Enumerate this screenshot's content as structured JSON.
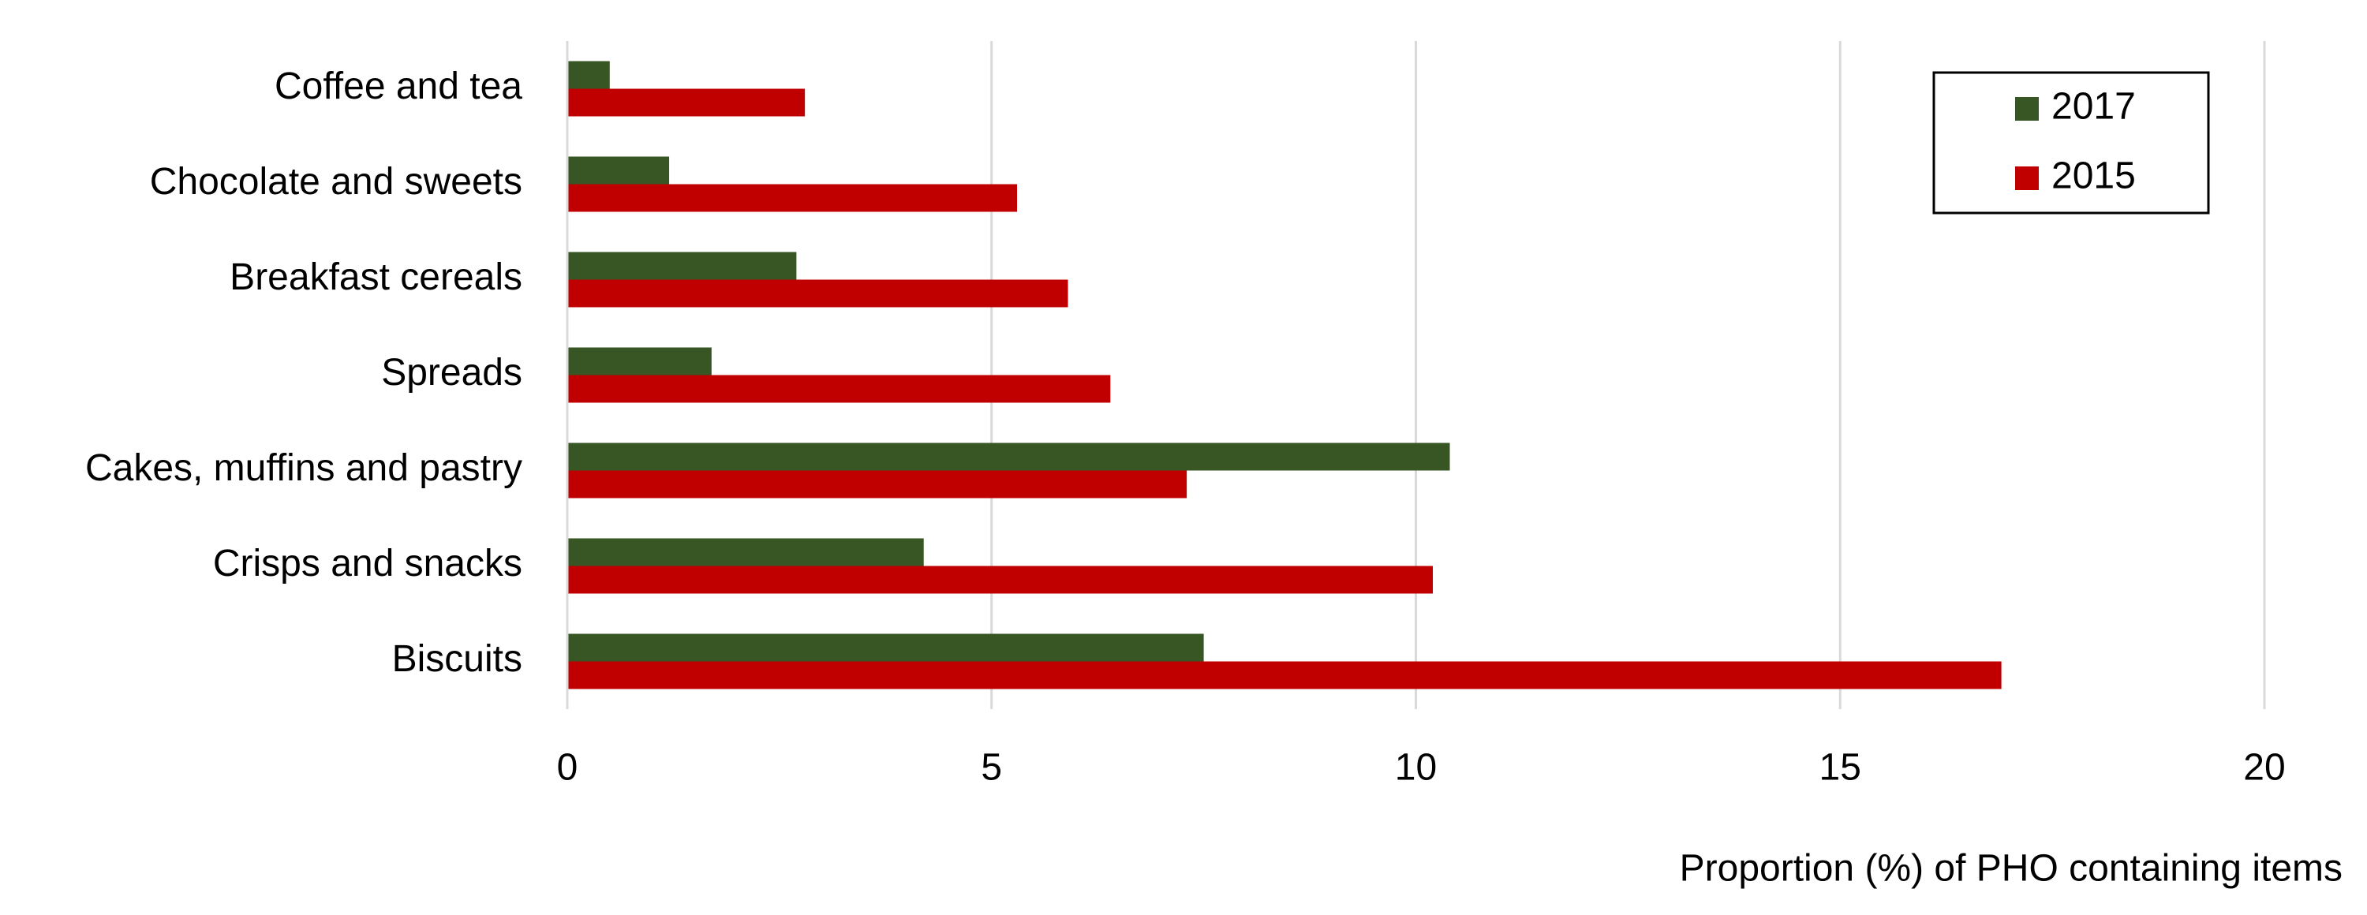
{
  "chart_data": {
    "type": "hbar",
    "xlabel": "Proportion (%) of PHO containing items",
    "categories": [
      "Coffee and tea",
      "Chocolate and sweets",
      "Breakfast cereals",
      "Spreads",
      "Cakes, muffins and pastry",
      "Crisps and snacks",
      "Biscuits"
    ],
    "series": [
      {
        "name": "2017",
        "color": "#375623",
        "values": [
          0.5,
          1.2,
          2.7,
          1.7,
          10.4,
          4.2,
          7.5
        ]
      },
      {
        "name": "2015",
        "color": "#c00000",
        "values": [
          2.8,
          5.3,
          5.9,
          6.4,
          7.3,
          10.2,
          16.9
        ]
      }
    ],
    "xlim": [
      0,
      20
    ],
    "xticks": [
      0,
      5,
      10,
      15,
      20
    ],
    "grid": true,
    "legend": "upper right"
  }
}
